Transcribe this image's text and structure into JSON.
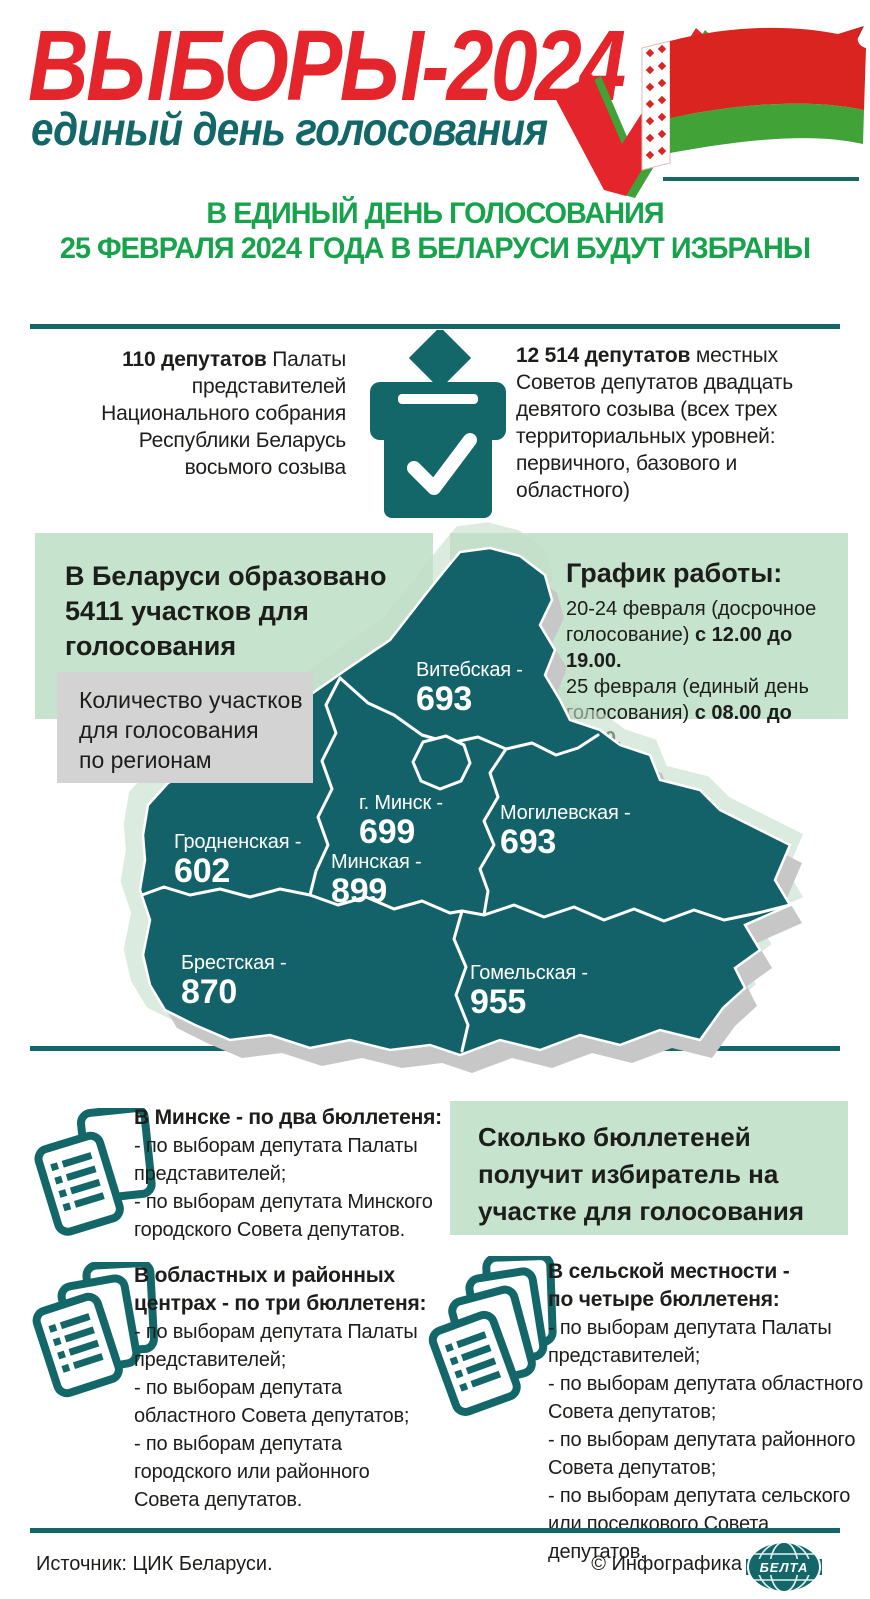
{
  "header": {
    "title": "ВЫБОРЫ-2024",
    "subtitle": "единый день голосования"
  },
  "lead": {
    "line1": "В ЕДИНЫЙ ДЕНЬ ГОЛОСОВАНИЯ",
    "line2": "25 ФЕВРАЛЯ 2024 ГОДА В БЕЛАРУСИ БУДУТ ИЗБРАНЫ"
  },
  "seats": {
    "house": [
      {
        "t": "110 депутатов",
        "b": true
      },
      {
        "t": " Палаты\nпредставителей\nНационального собрания\nРеспублики Беларусь\nвосьмого созыва"
      }
    ],
    "local": [
      {
        "t": "12 514 депутатов",
        "b": true
      },
      {
        "t": " местных\nСоветов депутатов двадцать\nдевятого созыва (всех трех\nтерриториальных уровней:\nпервичного, базового и\nобластного)"
      }
    ]
  },
  "stations": {
    "formed": "В Беларуси образовано\n5411 участков для\nголосования",
    "schedule_title": "График работы:",
    "schedule": [
      {
        "t": "20-24 февраля (досрочное\nголосование) "
      },
      {
        "t": "с 12.00 до 19.00.",
        "b": true
      },
      {
        "t": "\n25 февраля (единый день\nголосования) "
      },
      {
        "t": "с 08.00 до 20.00.",
        "b": true
      }
    ],
    "map_caption": "Количество участков\nдля голосования\nпо регионам"
  },
  "map": {
    "regions": [
      {
        "id": "vitebsk",
        "name": "Витебская -",
        "value": "693"
      },
      {
        "id": "minsk-city",
        "name": "г. Минск -",
        "value": "699"
      },
      {
        "id": "mogilev",
        "name": "Могилевская -",
        "value": "693"
      },
      {
        "id": "minsk",
        "name": "Минская -",
        "value": "899"
      },
      {
        "id": "grodno",
        "name": "Гродненская -",
        "value": "602"
      },
      {
        "id": "brest",
        "name": "Брестская -",
        "value": "870"
      },
      {
        "id": "gomel",
        "name": "Гомельская -",
        "value": "955"
      }
    ]
  },
  "ballots": {
    "question": "Сколько бюллетеней\nполучит избиратель на\nучастке для голосования",
    "minsk": {
      "title": "В Минске - по два бюллетеня:",
      "items": [
        "- по выборам депутата Палаты\nпредставителей;",
        "- по выборам депутата Минского\nгородского Совета депутатов."
      ]
    },
    "district": {
      "title": "В областных и районных\nцентрах - по три бюллетеня:",
      "items": [
        "- по выборам депутата Палаты\nпредставителей;",
        "- по выборам депутата\nобластного Совета депутатов;",
        "- по выборам депутата\nгородского или районного\nСовета депутатов."
      ]
    },
    "rural": {
      "title": "В сельской местности -\nпо четыре бюллетеня:",
      "items": [
        "- по выборам депутата Палаты\nпредставителей;",
        "- по выборам депутата областного\nСовета депутатов;",
        "- по выборам депутата районного\nСовета депутатов;",
        "- по выборам депутата сельского\nили поселкового Совета депутатов."
      ]
    }
  },
  "footer": {
    "source": "Источник: ЦИК Беларуси.",
    "credit": "© Инфографика",
    "logo": "БЕЛТА"
  },
  "colors": {
    "red": "#e4252b",
    "teal": "#136769",
    "green": "#17a24c",
    "box_green": "#c6e3cd",
    "box_gray": "#d3d3d3",
    "ink": "#1d1d1b",
    "mapteal": "#146269",
    "ghost": "#c3ddc9",
    "shadow": "#c7c7c7",
    "flag_red": "#da2420",
    "flag_green": "#41a337"
  }
}
